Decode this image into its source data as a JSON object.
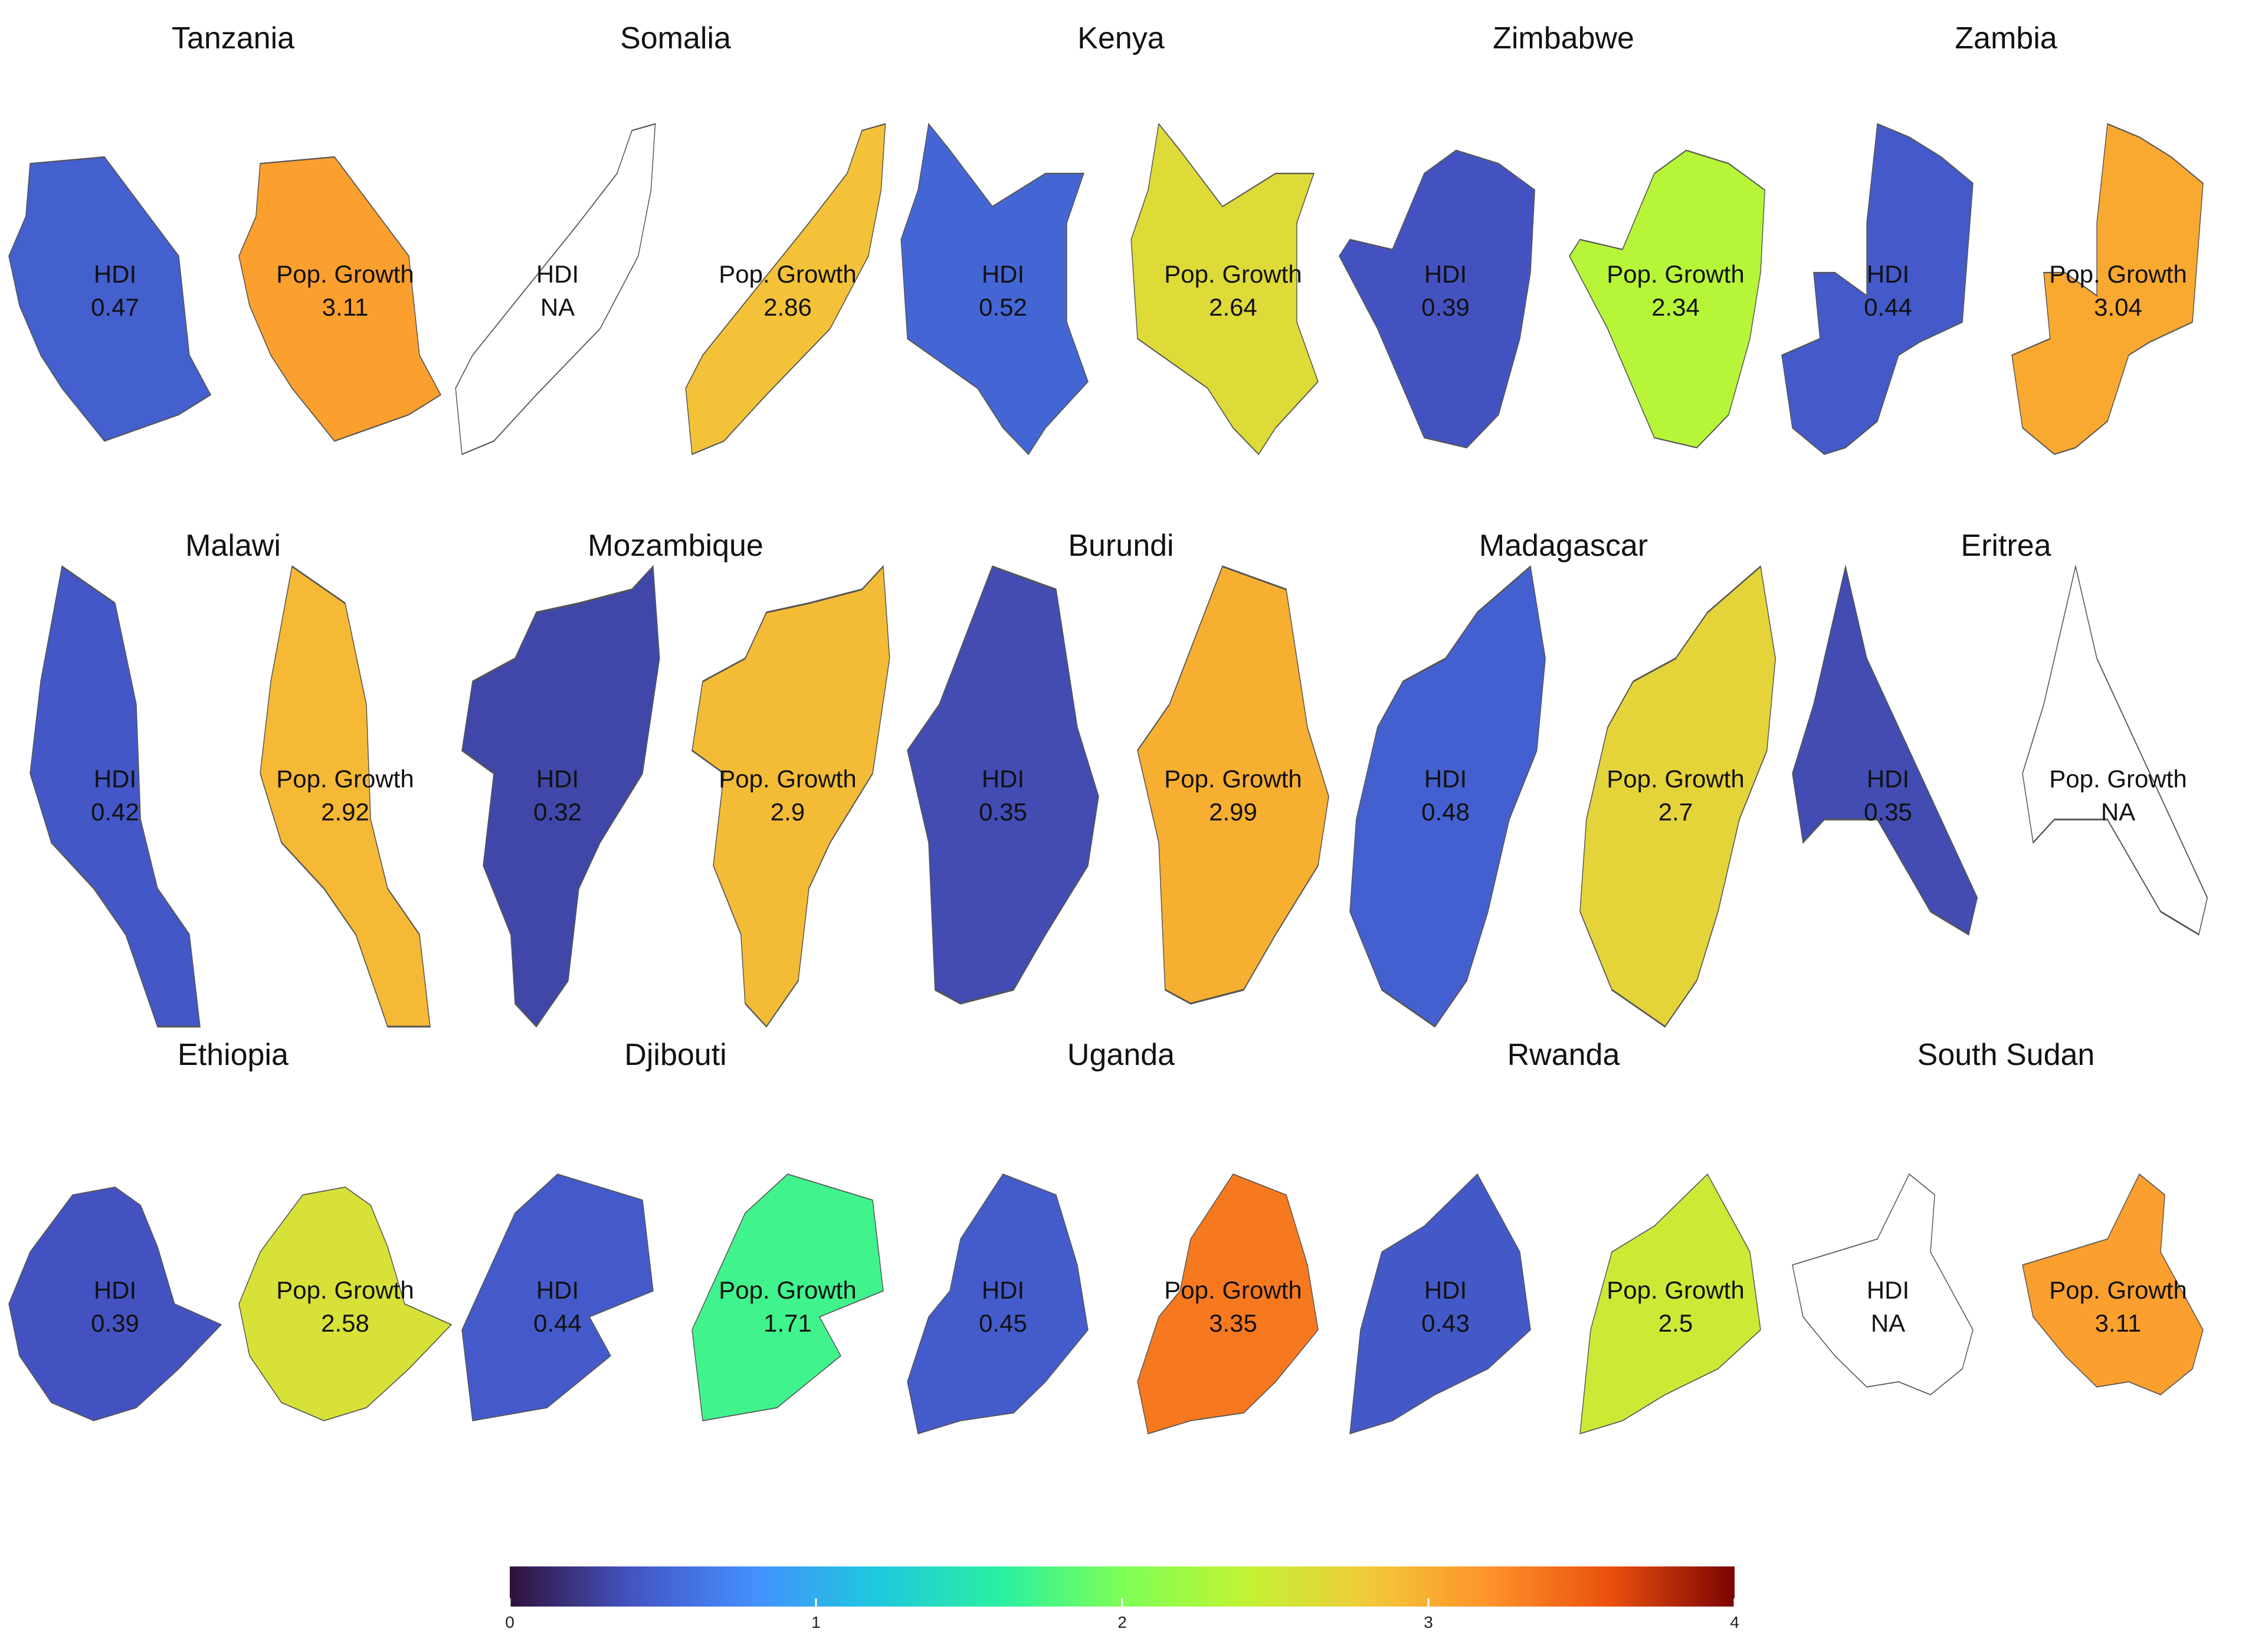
{
  "countries": [
    {
      "name": "Tanzania",
      "hdi": 0.47,
      "pop_growth": 3.11
    },
    {
      "name": "Somalia",
      "hdi": "NA",
      "pop_growth": 2.86
    },
    {
      "name": "Kenya",
      "hdi": 0.52,
      "pop_growth": 2.64
    },
    {
      "name": "Zimbabwe",
      "hdi": 0.39,
      "pop_growth": 2.34
    },
    {
      "name": "Zambia",
      "hdi": 0.44,
      "pop_growth": 3.04
    },
    {
      "name": "Malawi",
      "hdi": 0.42,
      "pop_growth": 2.92
    },
    {
      "name": "Mozambique",
      "hdi": 0.32,
      "pop_growth": 2.9
    },
    {
      "name": "Burundi",
      "hdi": 0.35,
      "pop_growth": 2.99
    },
    {
      "name": "Madagascar",
      "hdi": 0.48,
      "pop_growth": 2.7
    },
    {
      "name": "Eritrea",
      "hdi": 0.35,
      "pop_growth": "NA"
    },
    {
      "name": "Ethiopia",
      "hdi": 0.39,
      "pop_growth": 2.58
    },
    {
      "name": "Djibouti",
      "hdi": 0.44,
      "pop_growth": 1.71
    },
    {
      "name": "Uganda",
      "hdi": 0.45,
      "pop_growth": 3.35
    },
    {
      "name": "Rwanda",
      "hdi": 0.43,
      "pop_growth": 2.5
    },
    {
      "name": "South Sudan",
      "hdi": "NA",
      "pop_growth": 3.11
    }
  ],
  "labels": {
    "hdi": "HDI",
    "pop_growth": "Pop. Growth"
  },
  "legend": {
    "min": 0,
    "max": 4,
    "ticks": [
      "0",
      "1",
      "2",
      "3",
      "4"
    ],
    "palette": "turbo"
  },
  "colors": {
    "na_fill": "#ffffff",
    "outline": "#555555"
  },
  "shape_icons": {
    "Tanzania": "tanzania-outline",
    "Somalia": "somalia-outline",
    "Kenya": "kenya-outline",
    "Zimbabwe": "zimbabwe-outline",
    "Zambia": "zambia-outline",
    "Malawi": "malawi-outline",
    "Mozambique": "mozambique-outline",
    "Burundi": "burundi-outline",
    "Madagascar": "madagascar-outline",
    "Eritrea": "eritrea-outline",
    "Ethiopia": "ethiopia-outline",
    "Djibouti": "djibouti-outline",
    "Uganda": "uganda-outline",
    "Rwanda": "rwanda-outline",
    "South Sudan": "south-sudan-outline"
  }
}
